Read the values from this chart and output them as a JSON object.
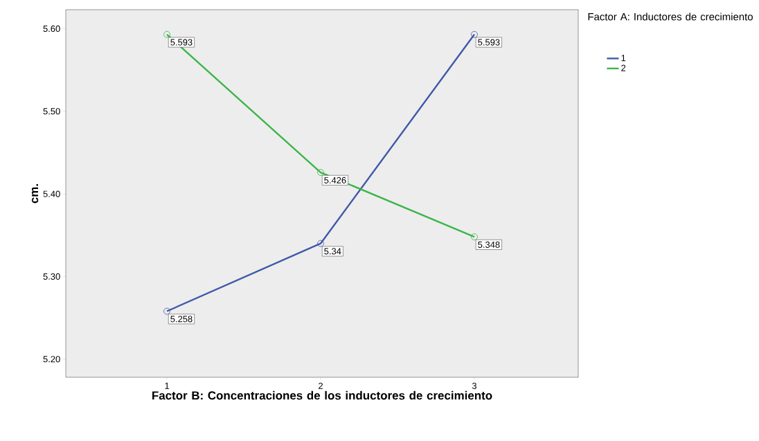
{
  "chart_data": {
    "type": "line",
    "xlabel": "Factor B: Concentraciones de los inductores de crecimiento",
    "ylabel": "cm.",
    "legend_title": "Factor A: Inductores de crecimiento",
    "categories": [
      "1",
      "2",
      "3"
    ],
    "series": [
      {
        "name": "1",
        "color": "#3f58a8",
        "values": [
          5.258,
          5.34,
          5.593
        ]
      },
      {
        "name": "2",
        "color": "#3cb54a",
        "values": [
          5.593,
          5.426,
          5.348
        ]
      }
    ],
    "ylim": [
      5.178,
      5.623
    ],
    "yticks": [
      {
        "value": 5.2,
        "label": "5.20"
      },
      {
        "value": 5.3,
        "label": "5.30"
      },
      {
        "value": 5.4,
        "label": "5.40"
      },
      {
        "value": 5.5,
        "label": "5.50"
      },
      {
        "value": 5.6,
        "label": "5.60"
      }
    ],
    "data_labels": true,
    "marker": "circle",
    "line_style": "solid",
    "grid": false,
    "legend": "top right"
  }
}
